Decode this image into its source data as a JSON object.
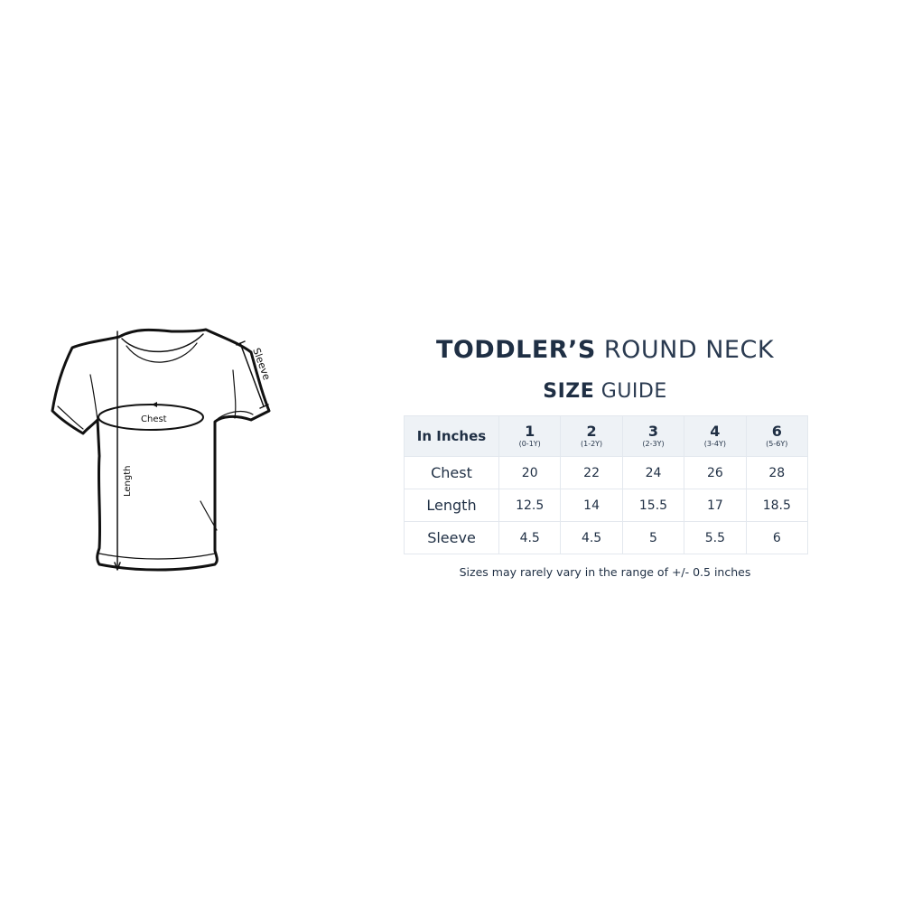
{
  "title": {
    "bold": "TODDLER’S",
    "light": "ROUND NECK"
  },
  "subtitle": {
    "bold": "SIZE",
    "light": "GUIDE"
  },
  "diagram_labels": {
    "chest": "Chest",
    "length": "Length",
    "sleeve": "Sleeve"
  },
  "table": {
    "corner": "In Inches",
    "sizes": [
      {
        "size": "1",
        "age": "(0-1Y)"
      },
      {
        "size": "2",
        "age": "(1-2Y)"
      },
      {
        "size": "3",
        "age": "(2-3Y)"
      },
      {
        "size": "4",
        "age": "(3-4Y)"
      },
      {
        "size": "6",
        "age": "(5-6Y)"
      }
    ],
    "rows": [
      {
        "label": "Chest",
        "values": [
          "20",
          "22",
          "24",
          "26",
          "28"
        ]
      },
      {
        "label": "Length",
        "values": [
          "12.5",
          "14",
          "15.5",
          "17",
          "18.5"
        ]
      },
      {
        "label": "Sleeve",
        "values": [
          "4.5",
          "4.5",
          "5",
          "5.5",
          "6"
        ]
      }
    ]
  },
  "note": "Sizes may rarely vary in the range of +/- 0.5 inches",
  "colors": {
    "text": "#1f2f44",
    "header_bg": "#eef2f6",
    "border": "#e3e8ee"
  }
}
